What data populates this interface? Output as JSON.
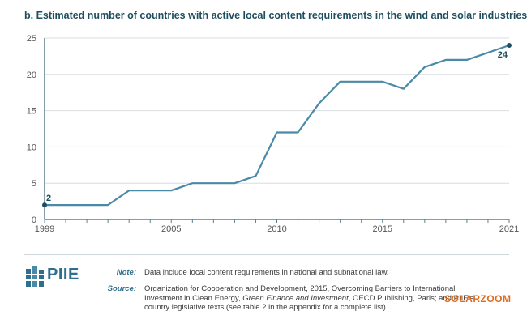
{
  "chart_data": {
    "type": "line",
    "title": "b. Estimated number of countries with active local content requirements in the wind and solar industries",
    "x": [
      1999,
      2000,
      2001,
      2002,
      2003,
      2004,
      2005,
      2006,
      2007,
      2008,
      2009,
      2010,
      2011,
      2012,
      2013,
      2014,
      2015,
      2016,
      2017,
      2018,
      2019,
      2020,
      2021
    ],
    "values": [
      2,
      2,
      2,
      2,
      4,
      4,
      4,
      5,
      5,
      5,
      6,
      12,
      12,
      16,
      19,
      19,
      19,
      18,
      21,
      22,
      22,
      23,
      24
    ],
    "xticks": [
      1999,
      2005,
      2010,
      2015,
      2021
    ],
    "yticks": [
      0,
      5,
      10,
      15,
      20,
      25
    ],
    "xlim": [
      1999,
      2021
    ],
    "ylim": [
      0,
      25
    ],
    "grid": "horizontal",
    "start_label": "2",
    "end_label": "24",
    "line_color": "#4a8aa6",
    "marker_color": "#1f4e5f"
  },
  "footer": {
    "logo_text": "PIIE",
    "note_label": "Note:",
    "note_text": "Data include local content requirements in national and subnational law.",
    "source_label": "Source:",
    "source_lines": [
      "Organization for Cooperation and Development, 2015, Overcoming Barriers to International",
      "Investment in Clean Energy, ",
      "Green Finance and Investment",
      ", OECD Publishing, Paris; and PIIE's",
      "country legislative texts (see table 2 in the appendix for a complete list)."
    ],
    "watermark": "SOLARZOOM"
  }
}
